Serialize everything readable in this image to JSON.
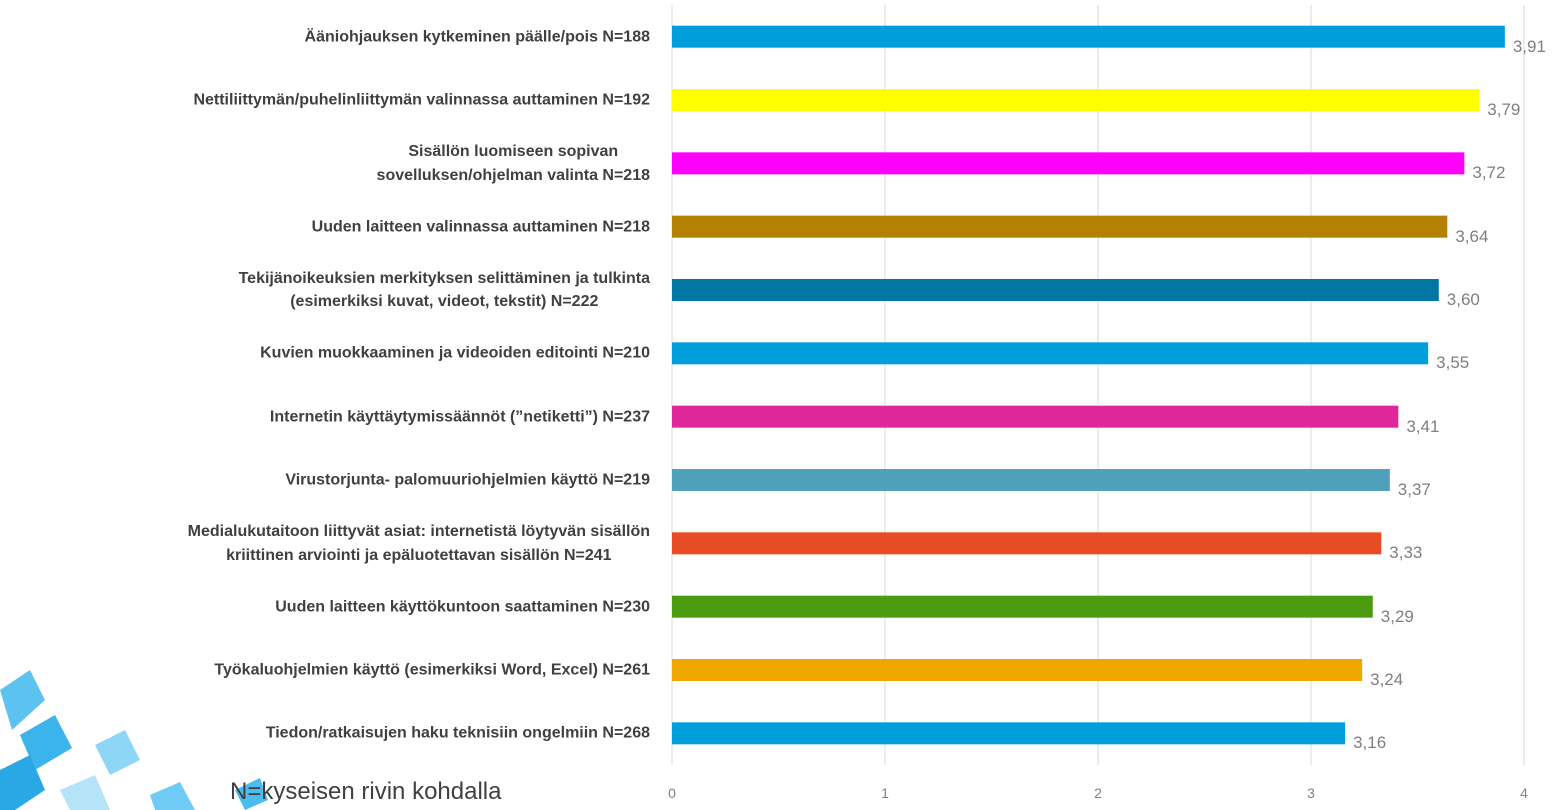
{
  "chart_data": {
    "type": "hbar",
    "categories": [
      "Ääniohjauksen kytkeminen päälle/pois N=188",
      "Nettiliittymän/puhelinliittymän valinnassa auttaminen N=192",
      "Sisällön luomiseen sopivan\nsovelluksen/ohjelman valinta  N=218",
      "Uuden laitteen valinnassa auttaminen N=218",
      "Tekijänoikeuksien merkityksen selittäminen ja tulkinta\n(esimerkiksi kuvat, videot, tekstit) N=222",
      "Kuvien muokkaaminen ja videoiden editointi N=210",
      "Internetin käyttäytymissäännöt (”netiketti”) N=237",
      "Virustorjunta- palomuuriohjelmien käyttö N=219",
      "Medialukutaitoon liittyvät asiat: internetistä löytyvän sisällön\nkriittinen arviointi ja epäluotettavan sisällön N=241",
      "Uuden laitteen käyttökuntoon saattaminen N=230",
      "Työkaluohjelmien käyttö (esimerkiksi Word, Excel) N=261",
      "Tiedon/ratkaisujen haku teknisiin ongelmiin N=268"
    ],
    "values": [
      3.91,
      3.79,
      3.72,
      3.64,
      3.6,
      3.55,
      3.41,
      3.37,
      3.33,
      3.29,
      3.24,
      3.16
    ],
    "value_labels": [
      "3,91",
      "3,79",
      "3,72",
      "3,64",
      "3,60",
      "3,55",
      "3,41",
      "3,37",
      "3,33",
      "3,29",
      "3,24",
      "3,16"
    ],
    "colors": [
      "#009fdb",
      "#ffff00",
      "#ff00ff",
      "#b38000",
      "#0078a3",
      "#009fdb",
      "#e0269b",
      "#4fa0bb",
      "#e84c24",
      "#4c9c12",
      "#f0a800",
      "#009fdb"
    ],
    "xlim": [
      0,
      4
    ],
    "xticks": [
      0,
      1,
      2,
      3,
      4
    ],
    "grid": true,
    "annotation": "N=kyseisen rivin kohdalla"
  }
}
